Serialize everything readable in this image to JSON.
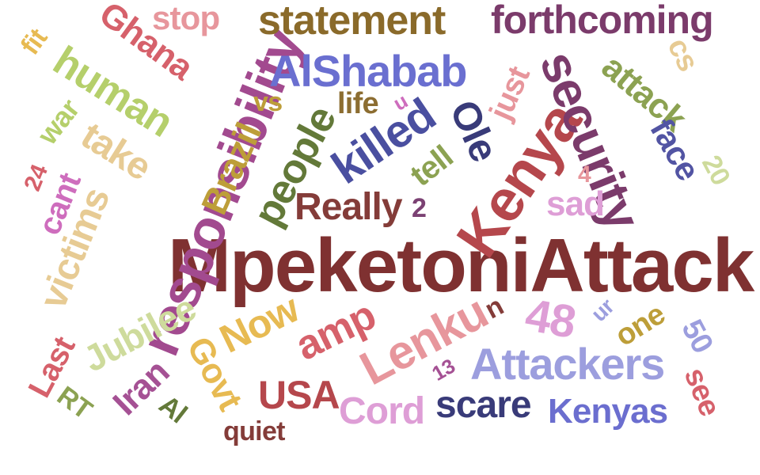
{
  "word_cloud": {
    "words": [
      {
        "text": "MpeketoniAttack",
        "color": "#7f3131",
        "rotated": false
      },
      {
        "text": "responsibility",
        "color": "#a24a8f",
        "rotated": true
      },
      {
        "text": "Kenya",
        "color": "#b5474c",
        "rotated": true
      },
      {
        "text": "security",
        "color": "#7b3b6b",
        "rotated": true
      },
      {
        "text": "AlShabab",
        "color": "#6a6fd0",
        "rotated": false
      },
      {
        "text": "statement",
        "color": "#8a6a2a",
        "rotated": false
      },
      {
        "text": "forthcoming",
        "color": "#7b3b6b",
        "rotated": false
      },
      {
        "text": "killed",
        "color": "#4a4fa0",
        "rotated": true
      },
      {
        "text": "Lenku",
        "color": "#e7969c",
        "rotated": true
      },
      {
        "text": "Attackers",
        "color": "#9c9ede",
        "rotated": false
      },
      {
        "text": "human",
        "color": "#b5cf6b",
        "rotated": true
      },
      {
        "text": "Ghana",
        "color": "#d6616b",
        "rotated": true
      },
      {
        "text": "people",
        "color": "#637939",
        "rotated": true
      },
      {
        "text": "Brazil",
        "color": "#bd9e39",
        "rotated": true
      },
      {
        "text": "victims",
        "color": "#e7cb94",
        "rotated": true
      },
      {
        "text": "attack",
        "color": "#8ca252",
        "rotated": true
      },
      {
        "text": "Ole",
        "color": "#393b79",
        "rotated": true
      },
      {
        "text": "Really",
        "color": "#843c39",
        "rotated": false
      },
      {
        "text": "amp",
        "color": "#d6616b",
        "rotated": true
      },
      {
        "text": "48",
        "color": "#de9ed6",
        "rotated": true
      },
      {
        "text": "take",
        "color": "#e7cb94",
        "rotated": true
      },
      {
        "text": "Now",
        "color": "#e7ba52",
        "rotated": true
      },
      {
        "text": "Jubilee",
        "color": "#cedb9c",
        "rotated": true
      },
      {
        "text": "Govt",
        "color": "#e7ba52",
        "rotated": true
      },
      {
        "text": "Iran",
        "color": "#a55194",
        "rotated": true
      },
      {
        "text": "USA",
        "color": "#b5474c",
        "rotated": false
      },
      {
        "text": "Cord",
        "color": "#de9ed6",
        "rotated": false
      },
      {
        "text": "scare",
        "color": "#393b79",
        "rotated": false
      },
      {
        "text": "Kenyas",
        "color": "#6b6ecf",
        "rotated": false
      },
      {
        "text": "face",
        "color": "#5254a3",
        "rotated": true
      },
      {
        "text": "cant",
        "color": "#ce6dbd",
        "rotated": true
      },
      {
        "text": "Last",
        "color": "#d6616b",
        "rotated": true
      },
      {
        "text": "tell",
        "color": "#8ca252",
        "rotated": true
      },
      {
        "text": "just",
        "color": "#e7969c",
        "rotated": true
      },
      {
        "text": "sad",
        "color": "#de9ed6",
        "rotated": false
      },
      {
        "text": "one",
        "color": "#bd9e39",
        "rotated": true
      },
      {
        "text": "see",
        "color": "#d6616b",
        "rotated": true
      },
      {
        "text": "50",
        "color": "#9c9ede",
        "rotated": true
      },
      {
        "text": "stop",
        "color": "#e7969c",
        "rotated": false
      },
      {
        "text": "life",
        "color": "#8c6d31",
        "rotated": false
      },
      {
        "text": "war",
        "color": "#b5cf6b",
        "rotated": true
      },
      {
        "text": "fit",
        "color": "#e7ba52",
        "rotated": true
      },
      {
        "text": "cs",
        "color": "#e7cb94",
        "rotated": true
      },
      {
        "text": "vs",
        "color": "#bd9e39",
        "rotated": false
      },
      {
        "text": "RT",
        "color": "#8ca252",
        "rotated": true
      },
      {
        "text": "Al",
        "color": "#637939",
        "rotated": true
      },
      {
        "text": "quiet",
        "color": "#843c39",
        "rotated": false
      },
      {
        "text": "13",
        "color": "#a55194",
        "rotated": true
      },
      {
        "text": "n",
        "color": "#843c39",
        "rotated": true
      },
      {
        "text": "ur",
        "color": "#9c9ede",
        "rotated": true
      },
      {
        "text": "u",
        "color": "#ce6dbd",
        "rotated": true
      },
      {
        "text": "2",
        "color": "#7b4173",
        "rotated": false
      },
      {
        "text": "4",
        "color": "#e7969c",
        "rotated": false
      },
      {
        "text": "20",
        "color": "#cedb9c",
        "rotated": true
      },
      {
        "text": "24",
        "color": "#d6616b",
        "rotated": true
      }
    ]
  }
}
